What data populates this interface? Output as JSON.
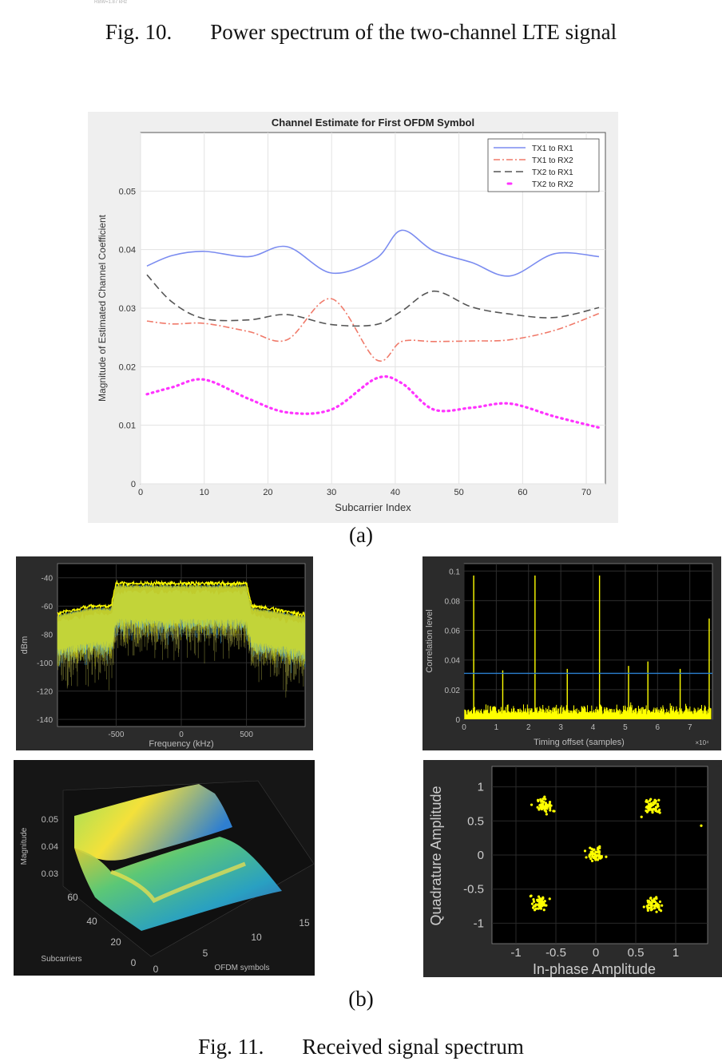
{
  "top_stub": "RBW=1.87 kHz",
  "fig10_caption": {
    "number": "Fig. 10.",
    "text": "Power spectrum of the two-channel LTE signal"
  },
  "label_a": "(a)",
  "label_b": "(b)",
  "fig11_caption": {
    "number": "Fig. 11.",
    "text": "Received signal spectrum"
  },
  "colors": {
    "tx1rx1": "#7b8cf0",
    "tx1rx2": "#f07a6a",
    "tx2rx1": "#555555",
    "tx2rx2": "#ff33ff",
    "yellow": "#ffff00",
    "cyan": "#33a8ff"
  },
  "chart_data": [
    {
      "type": "line",
      "title": "Channel Estimate for First OFDM Symbol",
      "xlabel": "Subcarrier Index",
      "ylabel": "Magnitude of Estimated Channel Coefficient",
      "xlim": [
        0,
        73
      ],
      "ylim": [
        0,
        0.06
      ],
      "xticks": [
        "0",
        "10",
        "20",
        "30",
        "40",
        "50",
        "60",
        "70"
      ],
      "yticks": [
        "0",
        "0.01",
        "0.02",
        "0.03",
        "0.04",
        "0.05"
      ],
      "grid": true,
      "legend_position": "top-right",
      "x": [
        1,
        5,
        10,
        17,
        23,
        30,
        37,
        41,
        46,
        52,
        58,
        65,
        72
      ],
      "series": [
        {
          "name": "TX1 to RX1",
          "style": "solid",
          "values": [
            0.0372,
            0.039,
            0.0397,
            0.0388,
            0.0405,
            0.036,
            0.0385,
            0.0433,
            0.0398,
            0.0378,
            0.0355,
            0.0393,
            0.0388
          ]
        },
        {
          "name": "TX1 to RX2",
          "style": "dashdot",
          "values": [
            0.0278,
            0.0273,
            0.0274,
            0.026,
            0.0246,
            0.0316,
            0.0212,
            0.0243,
            0.0243,
            0.0244,
            0.0246,
            0.0262,
            0.0291
          ]
        },
        {
          "name": "TX2 to RX1",
          "style": "dashed",
          "values": [
            0.0357,
            0.031,
            0.0282,
            0.028,
            0.0289,
            0.0272,
            0.0272,
            0.0295,
            0.0329,
            0.0302,
            0.029,
            0.0284,
            0.0301
          ]
        },
        {
          "name": "TX2 to RX2",
          "style": "dotted",
          "values": [
            0.0153,
            0.0165,
            0.0178,
            0.0145,
            0.0122,
            0.0127,
            0.018,
            0.0172,
            0.0127,
            0.013,
            0.0137,
            0.0115,
            0.0096
          ]
        }
      ]
    },
    {
      "type": "area",
      "xlabel": "Frequency (kHz)",
      "ylabel": "dBm",
      "xlim": [
        -950,
        950
      ],
      "ylim": [
        -145,
        -30
      ],
      "xticks": [
        "-500",
        "0",
        "500"
      ],
      "yticks": [
        "-40",
        "-60",
        "-80",
        "-100",
        "-120",
        "-140"
      ],
      "grid": true,
      "x": [
        -950,
        -700,
        -540,
        -500,
        500,
        540,
        700,
        950
      ],
      "series": [
        {
          "values": [
            -65,
            -60,
            -60,
            -44,
            -44,
            -60,
            -62,
            -66
          ]
        }
      ]
    },
    {
      "type": "line",
      "xlabel": "Timing offset (samples)",
      "ylabel": "Correlation level",
      "xlim": [
        0,
        7.7
      ],
      "ylim": [
        0,
        0.105
      ],
      "xticks": [
        "0",
        "1",
        "2",
        "3",
        "4",
        "5",
        "6",
        "7"
      ],
      "yticks": [
        "0",
        "0.02",
        "0.04",
        "0.06",
        "0.08",
        "0.1"
      ],
      "x_multiplier": "×10⁴",
      "grid": true,
      "threshold": 0.031,
      "peaks_x": [
        0.3,
        1.2,
        2.2,
        3.2,
        4.2,
        5.1,
        5.7,
        6.7,
        7.6
      ],
      "peaks_y": [
        0.097,
        0.033,
        0.097,
        0.034,
        0.097,
        0.036,
        0.039,
        0.034,
        0.068
      ]
    },
    {
      "type": "other",
      "chart_kind": "surface3d",
      "xlabel": "OFDM symbols",
      "ylabel": "Subcarriers",
      "zlabel": "Magnitude",
      "xticks": [
        "0",
        "5",
        "10",
        "15"
      ],
      "yticks": [
        "0",
        "20",
        "40",
        "60"
      ],
      "zticks": [
        "0.03",
        "0.04",
        "0.05"
      ]
    },
    {
      "type": "scatter",
      "xlabel": "In-phase Amplitude",
      "ylabel": "Quadrature Amplitude",
      "xlim": [
        -1.3,
        1.4
      ],
      "ylim": [
        -1.3,
        1.3
      ],
      "xticks": [
        "-1",
        "-0.5",
        "0",
        "0.5",
        "1"
      ],
      "yticks": [
        "1",
        "0.5",
        "0",
        "-0.5",
        "-1"
      ],
      "grid": true,
      "clusters": [
        {
          "x": -0.65,
          "y": 0.72
        },
        {
          "x": 0.7,
          "y": 0.7
        },
        {
          "x": 0.0,
          "y": 0.02
        },
        {
          "x": -0.7,
          "y": -0.7
        },
        {
          "x": 0.72,
          "y": -0.72
        }
      ]
    }
  ]
}
